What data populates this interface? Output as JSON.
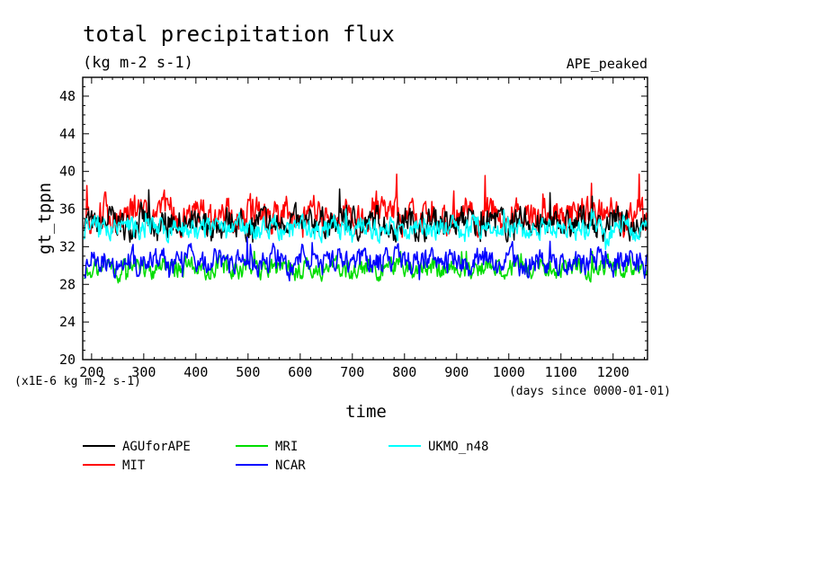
{
  "chart_data": {
    "type": "line",
    "title": "total precipitation flux",
    "subtitle": "(kg m-2 s-1)",
    "dataset_label": "APE_peaked",
    "xlabel": "time",
    "x_units_note": "(days since 0000-01-01)",
    "ylabel": "gt_tppn",
    "y_units_note": "(x1E-6 kg m-2 s-1)",
    "xlim": [
      183,
      1266
    ],
    "ylim": [
      20,
      50
    ],
    "x_ticks": [
      "200",
      "300",
      "400",
      "500",
      "600",
      "700",
      "800",
      "900",
      "1000",
      "1100",
      "1200"
    ],
    "y_ticks": [
      "20",
      "24",
      "28",
      "32",
      "36",
      "40",
      "44",
      "48"
    ],
    "legend_position": "bottom",
    "series": [
      {
        "name": "AGUforAPE",
        "color": "#000000",
        "x": [
          185,
          1265
        ],
        "y": [
          34.5,
          35.0
        ],
        "mean": 34.5,
        "range": [
          32.5,
          38.5
        ]
      },
      {
        "name": "MIT",
        "color": "#ff0000",
        "x": [
          185,
          1265
        ],
        "y": [
          35.0,
          36.5
        ],
        "mean": 35.5,
        "range": [
          33.0,
          39.7
        ]
      },
      {
        "name": "MRI",
        "color": "#00dd00",
        "x": [
          185,
          1265
        ],
        "y": [
          29.5,
          30.0
        ],
        "mean": 29.7,
        "range": [
          27.5,
          31.5
        ]
      },
      {
        "name": "NCAR",
        "color": "#0000ff",
        "x": [
          185,
          1265
        ],
        "y": [
          30.5,
          30.5
        ],
        "mean": 30.4,
        "range": [
          27.7,
          33.0
        ]
      },
      {
        "name": "UKMO_n48",
        "color": "#00ffff",
        "x": [
          185,
          1265
        ],
        "y": [
          35.0,
          34.0
        ],
        "mean": 33.5,
        "range": [
          31.5,
          36.0
        ]
      }
    ]
  }
}
